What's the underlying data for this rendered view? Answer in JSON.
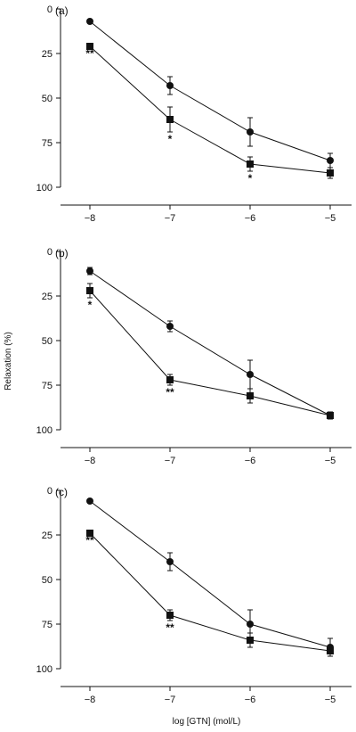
{
  "figure": {
    "ylabel": "Relaxation (%)",
    "xlabel": "log [GTN] (mol/L)"
  },
  "chart_data": [
    {
      "type": "line",
      "panel_label": "(a)",
      "x": [
        -8,
        -7,
        -6,
        -5
      ],
      "xticks": [
        "−8",
        "−7",
        "−6",
        "−5"
      ],
      "ylim": [
        0,
        100
      ],
      "y_inverted": true,
      "yticks": [
        "0",
        "25",
        "50",
        "75",
        "100"
      ],
      "series": [
        {
          "marker": "circle",
          "values": [
            7,
            43,
            69,
            85
          ],
          "errors": [
            0,
            5,
            8,
            4
          ]
        },
        {
          "marker": "square",
          "values": [
            21,
            62,
            87,
            92
          ],
          "errors": [
            0,
            7,
            4,
            3
          ]
        }
      ],
      "annotations": [
        {
          "x": -8,
          "y": 21,
          "text": "**"
        },
        {
          "x": -7,
          "y": 69,
          "text": "*"
        },
        {
          "x": -6,
          "y": 91,
          "text": "*"
        }
      ]
    },
    {
      "type": "line",
      "panel_label": "(b)",
      "x": [
        -8,
        -7,
        -6,
        -5
      ],
      "xticks": [
        "−8",
        "−7",
        "−6",
        "−5"
      ],
      "ylim": [
        0,
        100
      ],
      "y_inverted": true,
      "yticks": [
        "0",
        "25",
        "50",
        "75",
        "100"
      ],
      "series": [
        {
          "marker": "circle",
          "values": [
            11,
            42,
            69,
            92
          ],
          "errors": [
            2,
            3,
            8,
            2
          ]
        },
        {
          "marker": "square",
          "values": [
            22,
            72,
            81,
            92
          ],
          "errors": [
            4,
            3,
            4,
            2
          ]
        }
      ],
      "annotations": [
        {
          "x": -8,
          "y": 26,
          "text": "*"
        },
        {
          "x": -7,
          "y": 75,
          "text": "**"
        }
      ]
    },
    {
      "type": "line",
      "panel_label": "(c)",
      "x": [
        -8,
        -7,
        -6,
        -5
      ],
      "xticks": [
        "−8",
        "−7",
        "−6",
        "−5"
      ],
      "ylim": [
        0,
        100
      ],
      "y_inverted": true,
      "yticks": [
        "0",
        "25",
        "50",
        "75",
        "100"
      ],
      "series": [
        {
          "marker": "circle",
          "values": [
            6,
            40,
            75,
            88
          ],
          "errors": [
            0,
            5,
            8,
            5
          ]
        },
        {
          "marker": "square",
          "values": [
            24,
            70,
            84,
            90
          ],
          "errors": [
            0,
            3,
            4,
            3
          ]
        }
      ],
      "annotations": [
        {
          "x": -8,
          "y": 24,
          "text": "**"
        },
        {
          "x": -7,
          "y": 73,
          "text": "**"
        }
      ]
    }
  ]
}
